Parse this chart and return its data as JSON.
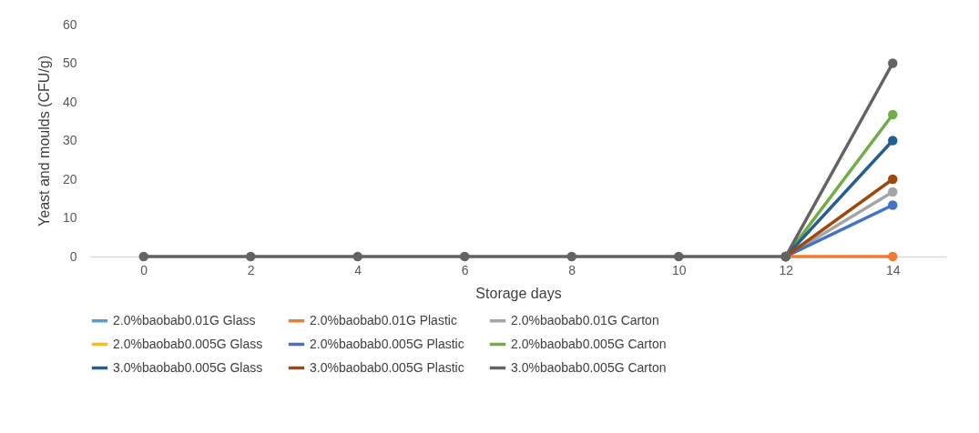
{
  "chart_data": {
    "type": "line",
    "xlabel": "Storage days",
    "ylabel": "Yeast and moulds (CFU/g)",
    "categories": [
      "0",
      "2",
      "4",
      "6",
      "8",
      "10",
      "12",
      "14"
    ],
    "ylim": [
      0,
      60
    ],
    "yticks": [
      0,
      10,
      20,
      30,
      40,
      50,
      60
    ],
    "grid": false,
    "legend": "bottom",
    "marker": "circle",
    "line_style": "solid",
    "series": [
      {
        "name": "2.0%baobab0.01G Glass",
        "color": "#5b9bd5",
        "values": [
          null,
          null,
          null,
          null,
          null,
          null,
          null,
          null
        ]
      },
      {
        "name": "2.0%baobab0.01G Plastic",
        "color": "#ed7d31",
        "values": [
          null,
          null,
          null,
          null,
          null,
          null,
          0,
          0
        ]
      },
      {
        "name": "2.0%baobab0.01G Carton",
        "color": "#a5a5a5",
        "values": [
          null,
          null,
          null,
          null,
          null,
          null,
          0,
          16.7
        ]
      },
      {
        "name": "2.0%baobab0.005G Glass",
        "color": "#ffc000",
        "values": [
          null,
          null,
          null,
          null,
          null,
          null,
          null,
          null
        ]
      },
      {
        "name": "2.0%baobab0.005G Plastic",
        "color": "#4472c4",
        "values": [
          null,
          null,
          null,
          null,
          null,
          null,
          0,
          13.3
        ]
      },
      {
        "name": "2.0%baobab0.005G Carton",
        "color": "#70ad47",
        "values": [
          null,
          null,
          null,
          null,
          null,
          null,
          0,
          36.7
        ]
      },
      {
        "name": "3.0%baobab0.005G Glass",
        "color": "#255e91",
        "values": [
          null,
          null,
          null,
          null,
          null,
          null,
          0,
          30
        ]
      },
      {
        "name": "3.0%baobab0.005G Plastic",
        "color": "#9e480e",
        "values": [
          null,
          null,
          null,
          null,
          null,
          null,
          0,
          20
        ]
      },
      {
        "name": "3.0%baobab0.005G Carton",
        "color": "#636363",
        "values": [
          0,
          0,
          0,
          0,
          0,
          0,
          0,
          50
        ]
      }
    ]
  }
}
